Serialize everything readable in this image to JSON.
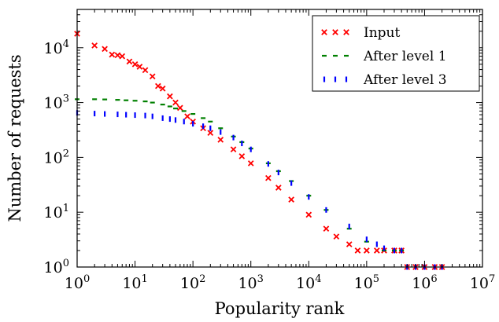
{
  "chart_data": {
    "type": "scatter",
    "xlabel": "Popularity rank",
    "ylabel": "Number of requests",
    "x_scale": "log",
    "y_scale": "log",
    "xlim": [
      1,
      10000000
    ],
    "ylim": [
      1,
      50000
    ],
    "x_ticks": [
      {
        "base": "10",
        "exp": "0",
        "value": 1
      },
      {
        "base": "10",
        "exp": "1",
        "value": 10
      },
      {
        "base": "10",
        "exp": "2",
        "value": 100
      },
      {
        "base": "10",
        "exp": "3",
        "value": 1000
      },
      {
        "base": "10",
        "exp": "4",
        "value": 10000
      },
      {
        "base": "10",
        "exp": "5",
        "value": 100000
      },
      {
        "base": "10",
        "exp": "6",
        "value": 1000000
      },
      {
        "base": "10",
        "exp": "7",
        "value": 10000000
      }
    ],
    "y_ticks": [
      {
        "base": "10",
        "exp": "0",
        "value": 1
      },
      {
        "base": "10",
        "exp": "1",
        "value": 10
      },
      {
        "base": "10",
        "exp": "2",
        "value": 100
      },
      {
        "base": "10",
        "exp": "3",
        "value": 1000
      },
      {
        "base": "10",
        "exp": "4",
        "value": 10000
      }
    ],
    "grid": false,
    "legend_position": "top-right",
    "series": [
      {
        "name": "Input",
        "color": "#ff0000",
        "marker": "x",
        "x": [
          1,
          2,
          3,
          4,
          5,
          6,
          8,
          10,
          12,
          15,
          20,
          25,
          30,
          40,
          50,
          60,
          80,
          100,
          150,
          200,
          300,
          500,
          700,
          1000,
          2000,
          3000,
          5000,
          10000,
          20000,
          30000,
          50000,
          70000,
          100000,
          150000,
          200000,
          300000,
          400000,
          500000,
          700000,
          1000000,
          1500000,
          2000000
        ],
        "y": [
          18000,
          11000,
          9500,
          7500,
          7300,
          7000,
          5600,
          5000,
          4500,
          3900,
          3000,
          2000,
          1800,
          1300,
          1000,
          800,
          560,
          450,
          340,
          280,
          210,
          140,
          105,
          78,
          42,
          28,
          17,
          9,
          5,
          3.6,
          2.6,
          2,
          2,
          2,
          2,
          2,
          2,
          1,
          1,
          1,
          1,
          1
        ]
      },
      {
        "name": "After level 1",
        "color": "#008000",
        "marker": "dash",
        "x": [
          1,
          2,
          3,
          5,
          7,
          10,
          15,
          20,
          30,
          40,
          50,
          70,
          100,
          150,
          200,
          300,
          500,
          700,
          1000,
          2000,
          3000,
          5000,
          10000,
          20000,
          50000,
          100000,
          200000,
          300000,
          400000
        ],
        "y": [
          1150,
          1150,
          1140,
          1120,
          1100,
          1080,
          1050,
          1000,
          920,
          850,
          780,
          700,
          620,
          520,
          450,
          340,
          240,
          190,
          145,
          78,
          56,
          37,
          20,
          11,
          5,
          2.9,
          2,
          2,
          2
        ]
      },
      {
        "name": "After level 3",
        "color": "#0000ff",
        "marker": "tick",
        "x": [
          1,
          2,
          3,
          5,
          7,
          10,
          15,
          20,
          30,
          40,
          50,
          70,
          100,
          150,
          200,
          300,
          500,
          700,
          1000,
          2000,
          3000,
          5000,
          10000,
          20000,
          50000,
          100000,
          150000,
          200000,
          300000,
          400000,
          500000,
          700000,
          1000000,
          1500000,
          2000000
        ],
        "y": [
          650,
          630,
          620,
          610,
          600,
          590,
          580,
          560,
          520,
          500,
          480,
          450,
          410,
          370,
          340,
          290,
          230,
          180,
          140,
          76,
          53,
          34,
          19,
          11,
          5.5,
          3.2,
          2.6,
          2.2,
          2,
          2,
          1,
          1,
          1,
          1,
          1
        ]
      }
    ]
  }
}
